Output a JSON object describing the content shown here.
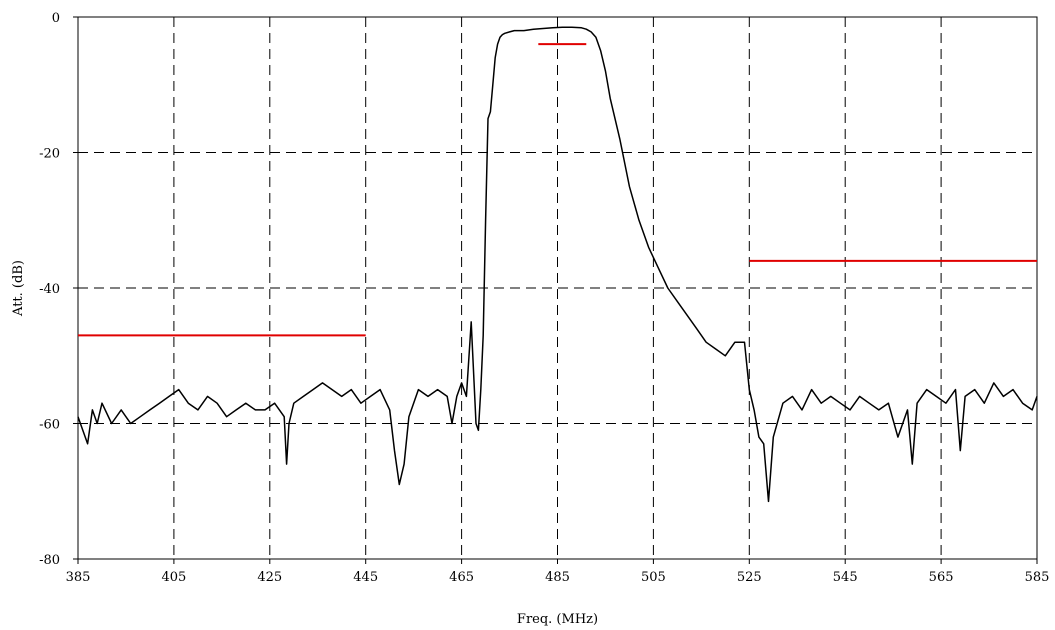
{
  "chart_data": {
    "type": "line",
    "title": "",
    "xlabel": "Freq. (MHz)",
    "ylabel": "Att. (dB)",
    "xlim": [
      385,
      585
    ],
    "ylim": [
      -80,
      0
    ],
    "x_ticks": [
      385,
      405,
      425,
      445,
      465,
      485,
      505,
      525,
      545,
      565,
      585
    ],
    "y_ticks": [
      0,
      -20,
      -40,
      -60,
      -80
    ],
    "grid": true,
    "colors": {
      "trace": "#000000",
      "mask": "#e00000"
    },
    "series": [
      {
        "color": "#000000",
        "x": [
          385,
          386,
          387,
          388,
          389,
          390,
          392,
          394,
          396,
          398,
          400,
          402,
          404,
          406,
          408,
          410,
          412,
          414,
          416,
          418,
          420,
          422,
          424,
          426,
          428,
          428.5,
          429,
          430,
          432,
          434,
          436,
          438,
          440,
          442,
          444,
          446,
          448,
          450,
          451,
          452,
          453,
          454,
          456,
          458,
          460,
          462,
          463,
          464,
          465,
          466,
          467,
          468,
          468.5,
          469,
          469.5,
          470,
          470.5,
          471,
          471.5,
          472,
          472.5,
          473,
          473.5,
          474,
          475,
          476,
          478,
          480,
          482,
          484,
          486,
          488,
          490,
          491,
          492,
          493,
          494,
          495,
          496,
          498,
          500,
          502,
          504,
          506,
          508,
          510,
          512,
          514,
          515,
          516,
          518,
          520,
          522,
          524,
          525,
          526,
          527,
          528,
          529,
          530,
          532,
          534,
          536,
          538,
          540,
          542,
          544,
          546,
          548,
          550,
          552,
          554,
          556,
          558,
          559,
          560,
          562,
          564,
          566,
          568,
          569,
          570,
          572,
          574,
          576,
          578,
          580,
          582,
          584,
          585
        ],
        "y": [
          -59,
          -61,
          -63,
          -58,
          -60,
          -57,
          -60,
          -58,
          -60,
          -59,
          -58,
          -57,
          -56,
          -55,
          -57,
          -58,
          -56,
          -57,
          -59,
          -58,
          -57,
          -58,
          -58,
          -57,
          -59,
          -66,
          -60,
          -57,
          -56,
          -55,
          -54,
          -55,
          -56,
          -55,
          -57,
          -56,
          -55,
          -58,
          -64,
          -69,
          -66,
          -59,
          -55,
          -56,
          -55,
          -56,
          -60,
          -56,
          -54,
          -56,
          -45,
          -60,
          -61,
          -55,
          -47,
          -30,
          -15,
          -14,
          -10,
          -6,
          -4,
          -3,
          -2.6,
          -2.4,
          -2.2,
          -2,
          -2,
          -1.8,
          -1.7,
          -1.6,
          -1.5,
          -1.5,
          -1.6,
          -1.8,
          -2.2,
          -3,
          -5,
          -8,
          -12,
          -18,
          -25,
          -30,
          -34,
          -37,
          -40,
          -42,
          -44,
          -46,
          -47,
          -48,
          -49,
          -50,
          -48,
          -48,
          -55,
          -58,
          -62,
          -63,
          -71.5,
          -62,
          -57,
          -56,
          -58,
          -55,
          -57,
          -56,
          -57,
          -58,
          -56,
          -57,
          -58,
          -57,
          -62,
          -58,
          -66,
          -57,
          -55,
          -56,
          -57,
          -55,
          -64,
          -56,
          -55,
          -57,
          -54,
          -56,
          -55,
          -57,
          -58,
          -56
        ]
      }
    ],
    "mask_lines": [
      {
        "x": [
          385,
          445
        ],
        "y": [
          -47,
          -47
        ],
        "color": "#e00000"
      },
      {
        "x": [
          481,
          491
        ],
        "y": [
          -4,
          -4
        ],
        "color": "#e00000"
      },
      {
        "x": [
          525,
          585
        ],
        "y": [
          -36,
          -36
        ],
        "color": "#e00000"
      }
    ]
  }
}
